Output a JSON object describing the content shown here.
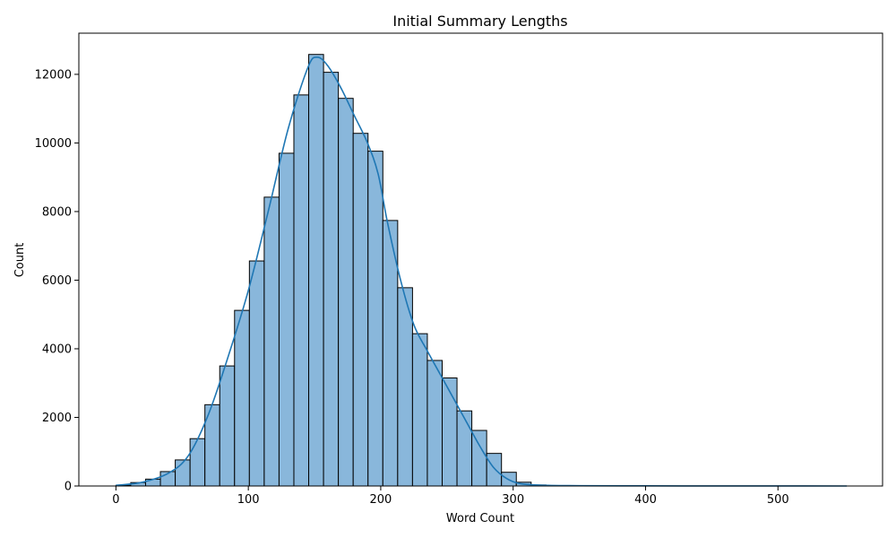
{
  "chart_data": {
    "type": "bar",
    "subtype": "histogram_with_kde",
    "title": "Initial Summary Lengths",
    "xlabel": "Word Count",
    "ylabel": "Count",
    "xlim": [
      -28,
      579
    ],
    "ylim": [
      0,
      13200
    ],
    "x_ticks": [
      0,
      100,
      200,
      300,
      400,
      500
    ],
    "y_ticks": [
      0,
      2000,
      4000,
      6000,
      8000,
      10000,
      12000
    ],
    "bin_width": 11.2,
    "bins": [
      {
        "start": 0,
        "count": 20
      },
      {
        "start": 11.2,
        "count": 100
      },
      {
        "start": 22.4,
        "count": 200
      },
      {
        "start": 33.6,
        "count": 420
      },
      {
        "start": 44.8,
        "count": 760
      },
      {
        "start": 56.0,
        "count": 1380
      },
      {
        "start": 67.2,
        "count": 2370
      },
      {
        "start": 78.4,
        "count": 3500
      },
      {
        "start": 89.6,
        "count": 5120
      },
      {
        "start": 100.8,
        "count": 6560
      },
      {
        "start": 112.0,
        "count": 8420
      },
      {
        "start": 123.2,
        "count": 9700
      },
      {
        "start": 134.4,
        "count": 11400
      },
      {
        "start": 145.6,
        "count": 12580
      },
      {
        "start": 156.8,
        "count": 12060
      },
      {
        "start": 168.0,
        "count": 11300
      },
      {
        "start": 179.2,
        "count": 10280
      },
      {
        "start": 190.4,
        "count": 9760
      },
      {
        "start": 201.6,
        "count": 7740
      },
      {
        "start": 212.8,
        "count": 5780
      },
      {
        "start": 224.0,
        "count": 4440
      },
      {
        "start": 235.2,
        "count": 3660
      },
      {
        "start": 246.4,
        "count": 3150
      },
      {
        "start": 257.6,
        "count": 2190
      },
      {
        "start": 268.8,
        "count": 1620
      },
      {
        "start": 280.0,
        "count": 950
      },
      {
        "start": 291.2,
        "count": 400
      },
      {
        "start": 302.4,
        "count": 110
      },
      {
        "start": 313.6,
        "count": 30
      },
      {
        "start": 324.8,
        "count": 10
      },
      {
        "start": 336.0,
        "count": 5
      }
    ],
    "kde_points": [
      [
        0,
        20
      ],
      [
        20,
        110
      ],
      [
        40,
        380
      ],
      [
        55,
        900
      ],
      [
        70,
        2100
      ],
      [
        85,
        3800
      ],
      [
        100,
        5700
      ],
      [
        115,
        8000
      ],
      [
        130,
        10400
      ],
      [
        145,
        12200
      ],
      [
        152,
        12500
      ],
      [
        160,
        12250
      ],
      [
        170,
        11600
      ],
      [
        180,
        10800
      ],
      [
        190,
        10000
      ],
      [
        198,
        9100
      ],
      [
        205,
        7700
      ],
      [
        215,
        6000
      ],
      [
        225,
        4700
      ],
      [
        235,
        3950
      ],
      [
        245,
        3250
      ],
      [
        255,
        2550
      ],
      [
        265,
        1850
      ],
      [
        275,
        1150
      ],
      [
        285,
        550
      ],
      [
        295,
        220
      ],
      [
        305,
        70
      ],
      [
        320,
        25
      ],
      [
        350,
        8
      ],
      [
        400,
        4
      ],
      [
        450,
        2
      ],
      [
        500,
        1
      ],
      [
        552,
        0
      ]
    ],
    "grid": false,
    "colors": {
      "bar_fill": "#89b7db",
      "bar_edge": "#000000",
      "kde_line": "#1f77b4",
      "axes": "#000000"
    }
  }
}
